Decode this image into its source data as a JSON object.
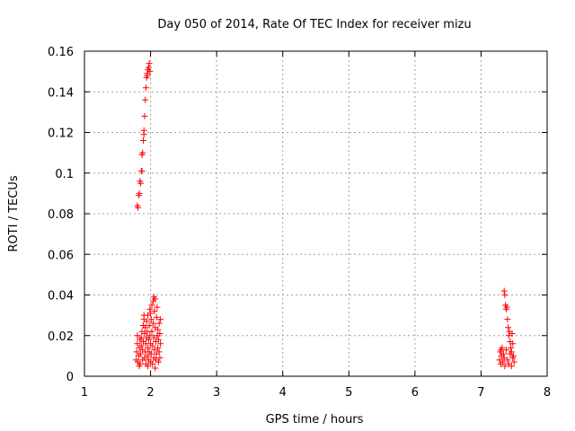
{
  "chart_data": {
    "type": "scatter",
    "title": "Day 050 of 2014, Rate Of TEC Index for receiver mizu",
    "xlabel": "GPS time / hours",
    "ylabel": "ROTI / TECUs",
    "xlim": [
      1,
      8
    ],
    "ylim": [
      0,
      0.16
    ],
    "x_ticks": [
      {
        "v": 1,
        "label": "1"
      },
      {
        "v": 2,
        "label": "2"
      },
      {
        "v": 3,
        "label": "3"
      },
      {
        "v": 4,
        "label": "4"
      },
      {
        "v": 5,
        "label": "5"
      },
      {
        "v": 6,
        "label": "6"
      },
      {
        "v": 7,
        "label": "7"
      },
      {
        "v": 8,
        "label": "8"
      }
    ],
    "y_ticks": [
      {
        "v": 0,
        "label": "0"
      },
      {
        "v": 0.02,
        "label": "0.02"
      },
      {
        "v": 0.04,
        "label": "0.04"
      },
      {
        "v": 0.06,
        "label": "0.06"
      },
      {
        "v": 0.08,
        "label": "0.08"
      },
      {
        "v": 0.1,
        "label": "0.1"
      },
      {
        "v": 0.12,
        "label": "0.12"
      },
      {
        "v": 0.14,
        "label": "0.14"
      },
      {
        "v": 0.16,
        "label": "0.16"
      }
    ],
    "grid": true,
    "marker": "+",
    "series": [
      {
        "name": "ROTI",
        "color": "#ff0000",
        "points": [
          [
            1.8,
            0.084
          ],
          [
            1.81,
            0.083
          ],
          [
            1.82,
            0.089
          ],
          [
            1.83,
            0.09
          ],
          [
            1.84,
            0.096
          ],
          [
            1.85,
            0.095
          ],
          [
            1.86,
            0.101
          ],
          [
            1.87,
            0.101
          ],
          [
            1.87,
            0.109
          ],
          [
            1.88,
            0.11
          ],
          [
            1.89,
            0.116
          ],
          [
            1.9,
            0.119
          ],
          [
            1.9,
            0.121
          ],
          [
            1.91,
            0.128
          ],
          [
            1.92,
            0.136
          ],
          [
            1.93,
            0.142
          ],
          [
            1.94,
            0.147
          ],
          [
            1.95,
            0.149
          ],
          [
            1.96,
            0.151
          ],
          [
            1.97,
            0.152
          ],
          [
            1.98,
            0.154
          ],
          [
            1.99,
            0.15
          ],
          [
            1.95,
            0.148
          ],
          [
            1.78,
            0.008
          ],
          [
            1.79,
            0.012
          ],
          [
            1.8,
            0.016
          ],
          [
            1.8,
            0.02
          ],
          [
            1.81,
            0.007
          ],
          [
            1.82,
            0.01
          ],
          [
            1.83,
            0.014
          ],
          [
            1.84,
            0.018
          ],
          [
            1.84,
            0.006
          ],
          [
            1.85,
            0.011
          ],
          [
            1.86,
            0.015
          ],
          [
            1.86,
            0.019
          ],
          [
            1.87,
            0.022
          ],
          [
            1.88,
            0.008
          ],
          [
            1.88,
            0.013
          ],
          [
            1.89,
            0.017
          ],
          [
            1.89,
            0.025
          ],
          [
            1.9,
            0.028
          ],
          [
            1.9,
            0.03
          ],
          [
            1.91,
            0.009
          ],
          [
            1.91,
            0.021
          ],
          [
            1.92,
            0.012
          ],
          [
            1.92,
            0.024
          ],
          [
            1.93,
            0.016
          ],
          [
            1.93,
            0.006
          ],
          [
            1.94,
            0.019
          ],
          [
            1.94,
            0.027
          ],
          [
            1.95,
            0.01
          ],
          [
            1.95,
            0.022
          ],
          [
            1.96,
            0.014
          ],
          [
            1.96,
            0.03
          ],
          [
            1.97,
            0.008
          ],
          [
            1.97,
            0.018
          ],
          [
            1.98,
            0.025
          ],
          [
            1.98,
            0.012
          ],
          [
            1.99,
            0.02
          ],
          [
            1.99,
            0.033
          ],
          [
            2.0,
            0.007
          ],
          [
            2.0,
            0.016
          ],
          [
            2.01,
            0.028
          ],
          [
            2.01,
            0.011
          ],
          [
            2.02,
            0.035
          ],
          [
            2.02,
            0.022
          ],
          [
            2.03,
            0.006
          ],
          [
            2.03,
            0.015
          ],
          [
            2.04,
            0.037
          ],
          [
            2.04,
            0.026
          ],
          [
            2.05,
            0.009
          ],
          [
            2.05,
            0.019
          ],
          [
            2.06,
            0.032
          ],
          [
            2.06,
            0.013
          ],
          [
            2.07,
            0.038
          ],
          [
            2.07,
            0.024
          ],
          [
            2.08,
            0.008
          ],
          [
            2.08,
            0.017
          ],
          [
            2.09,
            0.029
          ],
          [
            2.09,
            0.011
          ],
          [
            2.1,
            0.02
          ],
          [
            2.1,
            0.034
          ],
          [
            2.11,
            0.014
          ],
          [
            2.11,
            0.023
          ],
          [
            2.12,
            0.007
          ],
          [
            2.12,
            0.018
          ],
          [
            2.13,
            0.026
          ],
          [
            2.13,
            0.012
          ],
          [
            2.14,
            0.021
          ],
          [
            2.14,
            0.009
          ],
          [
            2.15,
            0.016
          ],
          [
            2.15,
            0.028
          ],
          [
            2.05,
            0.039
          ],
          [
            2.0,
            0.031
          ],
          [
            1.96,
            0.005
          ],
          [
            1.83,
            0.005
          ],
          [
            2.07,
            0.004
          ],
          [
            7.28,
            0.008
          ],
          [
            7.29,
            0.012
          ],
          [
            7.3,
            0.006
          ],
          [
            7.31,
            0.01
          ],
          [
            7.32,
            0.014
          ],
          [
            7.33,
            0.007
          ],
          [
            7.34,
            0.011
          ],
          [
            7.35,
            0.009
          ],
          [
            7.35,
            0.042
          ],
          [
            7.36,
            0.04
          ],
          [
            7.37,
            0.035
          ],
          [
            7.38,
            0.033
          ],
          [
            7.39,
            0.034
          ],
          [
            7.4,
            0.028
          ],
          [
            7.41,
            0.024
          ],
          [
            7.42,
            0.02
          ],
          [
            7.43,
            0.022
          ],
          [
            7.44,
            0.017
          ],
          [
            7.45,
            0.014
          ],
          [
            7.46,
            0.012
          ],
          [
            7.47,
            0.021
          ],
          [
            7.48,
            0.016
          ],
          [
            7.49,
            0.01
          ],
          [
            7.5,
            0.007
          ],
          [
            7.36,
            0.005
          ],
          [
            7.38,
            0.013
          ],
          [
            7.4,
            0.008
          ],
          [
            7.42,
            0.006
          ],
          [
            7.44,
            0.011
          ],
          [
            7.46,
            0.005
          ],
          [
            7.3,
            0.013
          ],
          [
            7.48,
            0.009
          ]
        ]
      }
    ]
  }
}
